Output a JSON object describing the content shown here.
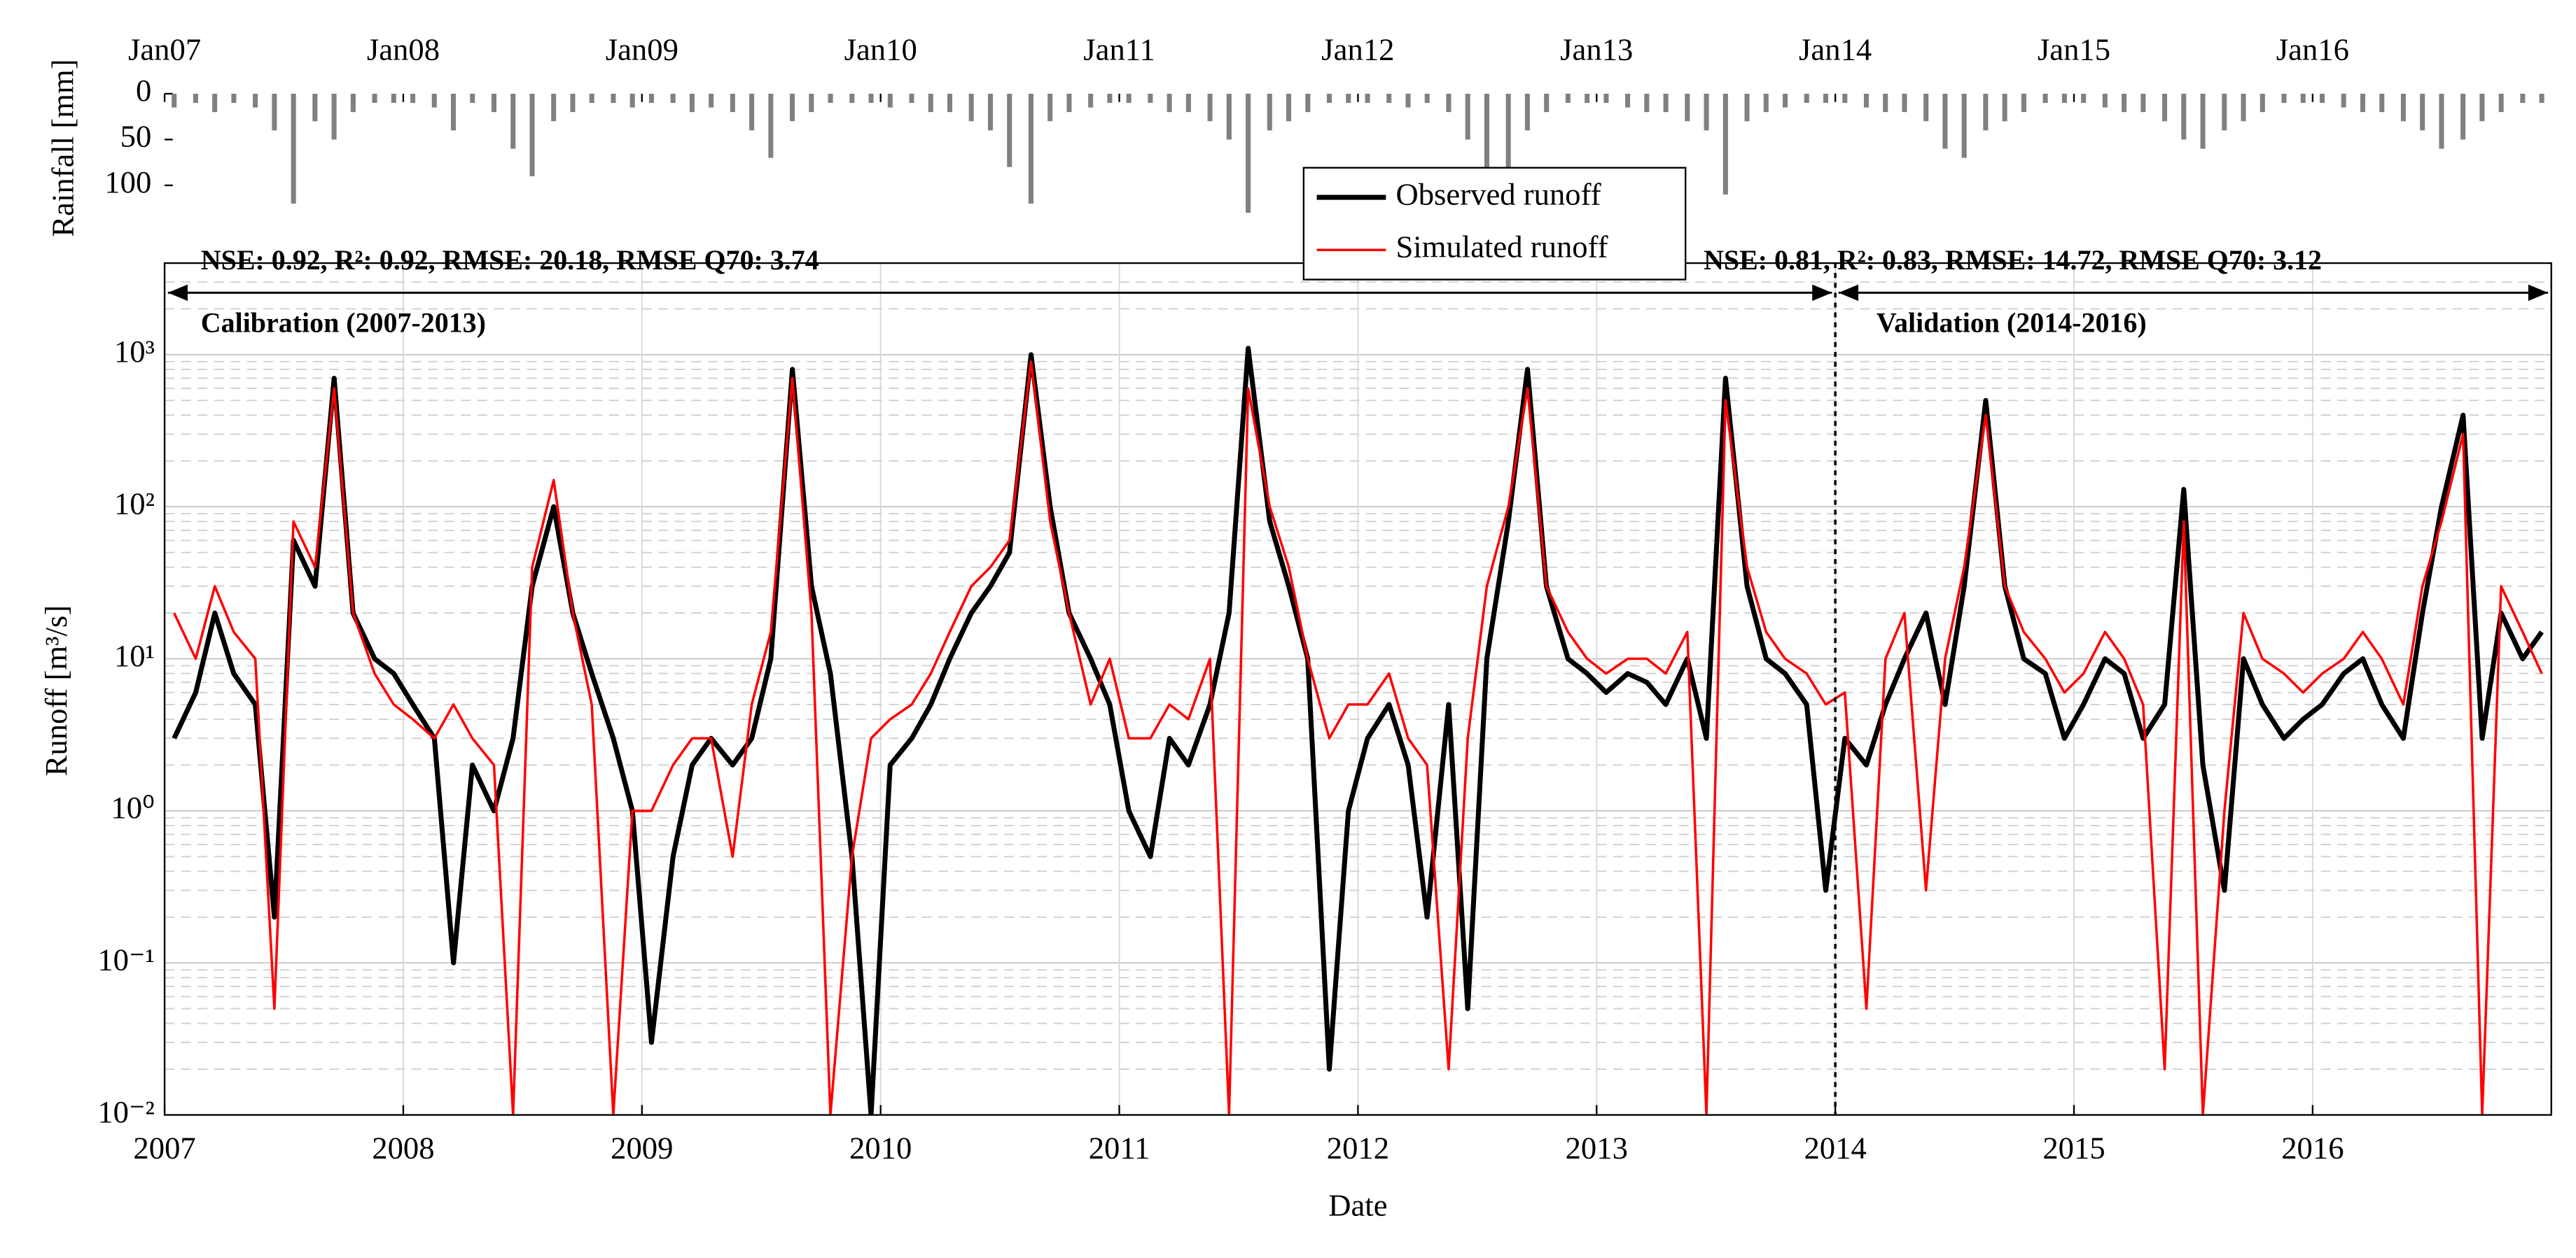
{
  "chart_data": [
    {
      "type": "bar",
      "ylabel": "Rainfall [mm]",
      "color": "#808080",
      "xlim": [
        2007,
        2017
      ],
      "xticks": [
        {
          "value": 2007,
          "label": "Jan07"
        },
        {
          "value": 2008,
          "label": "Jan08"
        },
        {
          "value": 2009,
          "label": "Jan09"
        },
        {
          "value": 2010,
          "label": "Jan10"
        },
        {
          "value": 2011,
          "label": "Jan11"
        },
        {
          "value": 2012,
          "label": "Jan12"
        },
        {
          "value": 2013,
          "label": "Jan13"
        },
        {
          "value": 2014,
          "label": "Jan14"
        },
        {
          "value": 2015,
          "label": "Jan15"
        },
        {
          "value": 2016,
          "label": "Jan16"
        }
      ],
      "ylim": [
        0,
        140
      ],
      "y_inverted": true,
      "yticks": [
        0,
        50,
        100
      ],
      "x": [
        2007.04,
        2007.13,
        2007.21,
        2007.29,
        2007.38,
        2007.46,
        2007.54,
        2007.63,
        2007.71,
        2007.79,
        2007.88,
        2007.96,
        2008.04,
        2008.13,
        2008.21,
        2008.29,
        2008.38,
        2008.46,
        2008.54,
        2008.63,
        2008.71,
        2008.79,
        2008.88,
        2008.96,
        2009.04,
        2009.13,
        2009.21,
        2009.29,
        2009.38,
        2009.46,
        2009.54,
        2009.63,
        2009.71,
        2009.79,
        2009.88,
        2009.96,
        2010.04,
        2010.13,
        2010.21,
        2010.29,
        2010.38,
        2010.46,
        2010.54,
        2010.63,
        2010.71,
        2010.79,
        2010.88,
        2010.96,
        2011.04,
        2011.13,
        2011.21,
        2011.29,
        2011.38,
        2011.46,
        2011.54,
        2011.63,
        2011.71,
        2011.79,
        2011.88,
        2011.96,
        2012.04,
        2012.13,
        2012.21,
        2012.29,
        2012.38,
        2012.46,
        2012.54,
        2012.63,
        2012.71,
        2012.79,
        2012.88,
        2012.96,
        2013.04,
        2013.13,
        2013.21,
        2013.29,
        2013.38,
        2013.46,
        2013.54,
        2013.63,
        2013.71,
        2013.79,
        2013.88,
        2013.96,
        2014.04,
        2014.13,
        2014.21,
        2014.29,
        2014.38,
        2014.46,
        2014.54,
        2014.63,
        2014.71,
        2014.79,
        2014.88,
        2014.96,
        2015.04,
        2015.13,
        2015.21,
        2015.29,
        2015.38,
        2015.46,
        2015.54,
        2015.63,
        2015.71,
        2015.79,
        2015.88,
        2015.96,
        2016.04,
        2016.13,
        2016.21,
        2016.29,
        2016.38,
        2016.46,
        2016.54,
        2016.63,
        2016.71,
        2016.79,
        2016.88,
        2016.96
      ],
      "values": [
        15,
        10,
        20,
        10,
        15,
        40,
        120,
        30,
        50,
        20,
        10,
        10,
        10,
        15,
        40,
        10,
        20,
        60,
        90,
        30,
        20,
        10,
        10,
        15,
        10,
        10,
        20,
        15,
        20,
        40,
        70,
        30,
        20,
        10,
        10,
        10,
        15,
        10,
        20,
        20,
        30,
        40,
        80,
        120,
        30,
        20,
        15,
        10,
        10,
        10,
        20,
        20,
        30,
        50,
        130,
        40,
        30,
        20,
        10,
        10,
        10,
        10,
        15,
        10,
        20,
        50,
        80,
        100,
        40,
        20,
        10,
        10,
        10,
        15,
        20,
        20,
        30,
        40,
        110,
        30,
        20,
        15,
        10,
        10,
        10,
        15,
        20,
        20,
        30,
        60,
        70,
        40,
        30,
        20,
        10,
        10,
        10,
        15,
        20,
        20,
        30,
        50,
        60,
        40,
        30,
        20,
        10,
        10,
        10,
        15,
        20,
        20,
        30,
        40,
        60,
        50,
        30,
        20,
        10,
        10
      ]
    },
    {
      "type": "line",
      "xlabel": "Date",
      "ylabel": "Runoff [m³/s]",
      "ylog": true,
      "grid": true,
      "minor_grid": true,
      "xlim": [
        2007,
        2017
      ],
      "xticks": [
        2007,
        2008,
        2009,
        2010,
        2011,
        2012,
        2013,
        2014,
        2015,
        2016
      ],
      "ylim": [
        0.01,
        4000
      ],
      "yticks": [
        {
          "value": 0.01,
          "label": "10⁻²"
        },
        {
          "value": 0.1,
          "label": "10⁻¹"
        },
        {
          "value": 1,
          "label": "10⁰"
        },
        {
          "value": 10,
          "label": "10¹"
        },
        {
          "value": 100,
          "label": "10²"
        },
        {
          "value": 1000,
          "label": "10³"
        }
      ],
      "split_x": 2014,
      "metrics_calibration": "NSE:  0.92, R²:  0.92, RMSE: 20.18, RMSE Q70:  3.74",
      "metrics_validation": "NSE:  0.81, R²:  0.83, RMSE: 14.72, RMSE Q70:  3.12",
      "period_calibration": "Calibration (2007-2013)",
      "period_validation": "Validation (2014-2016)",
      "legend": "upper center",
      "x": [
        2007.04,
        2007.13,
        2007.21,
        2007.29,
        2007.38,
        2007.46,
        2007.54,
        2007.63,
        2007.71,
        2007.79,
        2007.88,
        2007.96,
        2008.04,
        2008.13,
        2008.21,
        2008.29,
        2008.38,
        2008.46,
        2008.54,
        2008.63,
        2008.71,
        2008.79,
        2008.88,
        2008.96,
        2009.04,
        2009.13,
        2009.21,
        2009.29,
        2009.38,
        2009.46,
        2009.54,
        2009.63,
        2009.71,
        2009.79,
        2009.88,
        2009.96,
        2010.04,
        2010.13,
        2010.21,
        2010.29,
        2010.38,
        2010.46,
        2010.54,
        2010.63,
        2010.71,
        2010.79,
        2010.88,
        2010.96,
        2011.04,
        2011.13,
        2011.21,
        2011.29,
        2011.38,
        2011.46,
        2011.54,
        2011.63,
        2011.71,
        2011.79,
        2011.88,
        2011.96,
        2012.04,
        2012.13,
        2012.21,
        2012.29,
        2012.38,
        2012.46,
        2012.54,
        2012.63,
        2012.71,
        2012.79,
        2012.88,
        2012.96,
        2013.04,
        2013.13,
        2013.21,
        2013.29,
        2013.38,
        2013.46,
        2013.54,
        2013.63,
        2013.71,
        2013.79,
        2013.88,
        2013.96,
        2014.04,
        2014.13,
        2014.21,
        2014.29,
        2014.38,
        2014.46,
        2014.54,
        2014.63,
        2014.71,
        2014.79,
        2014.88,
        2014.96,
        2015.04,
        2015.13,
        2015.21,
        2015.29,
        2015.38,
        2015.46,
        2015.54,
        2015.63,
        2015.71,
        2015.79,
        2015.88,
        2015.96,
        2016.04,
        2016.13,
        2016.21,
        2016.29,
        2016.38,
        2016.46,
        2016.54,
        2016.63,
        2016.71,
        2016.79,
        2016.88,
        2016.96
      ],
      "series": [
        {
          "name": "Observed runoff",
          "color": "#000000",
          "width": 3,
          "values": [
            3,
            6,
            20,
            8,
            5,
            0.2,
            60,
            30,
            700,
            20,
            10,
            8,
            5,
            3,
            0.1,
            2,
            1,
            3,
            30,
            100,
            20,
            8,
            3,
            1,
            0.03,
            0.5,
            2,
            3,
            2,
            3,
            10,
            800,
            30,
            8,
            0.5,
            0.01,
            2,
            3,
            5,
            10,
            20,
            30,
            50,
            1000,
            100,
            20,
            10,
            5,
            1,
            0.5,
            3,
            2,
            5,
            20,
            1100,
            80,
            30,
            10,
            0.02,
            1,
            3,
            5,
            2,
            0.2,
            5,
            0.05,
            10,
            80,
            800,
            30,
            10,
            8,
            6,
            8,
            7,
            5,
            10,
            3,
            700,
            30,
            10,
            8,
            5,
            0.3,
            3,
            2,
            5,
            10,
            20,
            5,
            30,
            500,
            30,
            10,
            8,
            3,
            5,
            10,
            8,
            3,
            5,
            130,
            2,
            0.3,
            10,
            5,
            3,
            4,
            5,
            8,
            10,
            5,
            3,
            20,
            100,
            400,
            3,
            20,
            10,
            15
          ]
        },
        {
          "name": "Simulated runoff",
          "color": "#ff0000",
          "width": 1.5,
          "values": [
            20,
            10,
            30,
            15,
            10,
            0.05,
            80,
            40,
            600,
            20,
            8,
            5,
            4,
            3,
            5,
            3,
            2,
            0.01,
            40,
            150,
            20,
            5,
            0.01,
            1,
            1,
            2,
            3,
            3,
            0.5,
            5,
            15,
            700,
            20,
            0.01,
            0.5,
            3,
            4,
            5,
            8,
            15,
            30,
            40,
            60,
            900,
            80,
            20,
            5,
            10,
            3,
            3,
            5,
            4,
            10,
            0.01,
            600,
            100,
            40,
            10,
            3,
            5,
            5,
            8,
            3,
            2,
            0.02,
            3,
            30,
            100,
            600,
            30,
            15,
            10,
            8,
            10,
            10,
            8,
            15,
            0.01,
            500,
            40,
            15,
            10,
            8,
            5,
            6,
            0.05,
            10,
            20,
            0.3,
            10,
            40,
            400,
            30,
            15,
            10,
            6,
            8,
            15,
            10,
            5,
            0.02,
            80,
            0.01,
            1,
            20,
            10,
            8,
            6,
            8,
            10,
            15,
            10,
            5,
            30,
            80,
            300,
            0.01,
            30,
            15,
            8
          ]
        }
      ]
    }
  ]
}
